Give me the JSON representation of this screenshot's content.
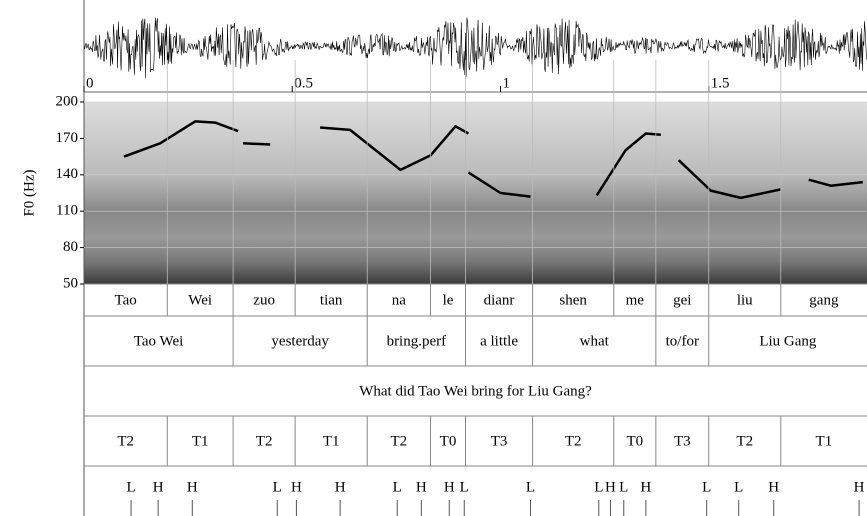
{
  "chart_data": {
    "type": "line",
    "ylabel": "F0 (Hz)",
    "xlim": [
      0,
      1.88
    ],
    "xticks": [
      0,
      0.5,
      1,
      1.5
    ],
    "ylim": [
      50,
      200
    ],
    "yticks": [
      50,
      80,
      110,
      140,
      170,
      200
    ],
    "grid": true,
    "series": [
      {
        "color": "#000000",
        "x": [
          0.096,
          0.183,
          0.267,
          0.315,
          0.37,
          null,
          0.382,
          0.447,
          null,
          0.567,
          0.639,
          0.76,
          0.832,
          0.892,
          0.923,
          null,
          0.923,
          1.0,
          1.072,
          null,
          1.231,
          1.3,
          1.349,
          1.385,
          null,
          1.428,
          1.505,
          1.577,
          1.673,
          null,
          1.74,
          1.793,
          1.87
        ],
        "values": [
          155,
          166,
          184,
          183,
          176,
          null,
          166,
          165,
          null,
          179,
          177,
          144,
          156,
          180,
          174,
          null,
          142,
          125,
          122,
          null,
          123,
          160,
          174,
          173,
          null,
          152,
          127,
          121,
          128,
          null,
          136,
          131,
          134
        ]
      }
    ]
  },
  "tiers": [
    {
      "intervals": [
        {
          "text": "Tao",
          "start": 0,
          "end": 0.2
        },
        {
          "text": "Wei",
          "start": 0.2,
          "end": 0.358
        },
        {
          "text": "zuo",
          "start": 0.358,
          "end": 0.507
        },
        {
          "text": "tian",
          "start": 0.507,
          "end": 0.68
        },
        {
          "text": "na",
          "start": 0.68,
          "end": 0.832
        },
        {
          "text": "le",
          "start": 0.832,
          "end": 0.916
        },
        {
          "text": "dianr",
          "start": 0.916,
          "end": 1.077
        },
        {
          "text": "shen",
          "start": 1.077,
          "end": 1.272
        },
        {
          "text": "me",
          "start": 1.272,
          "end": 1.373
        },
        {
          "text": "gei",
          "start": 1.373,
          "end": 1.5
        },
        {
          "text": "liu",
          "start": 1.5,
          "end": 1.673
        },
        {
          "text": "gang",
          "start": 1.673,
          "end": 1.88
        }
      ]
    },
    {
      "intervals": [
        {
          "text": "Tao Wei",
          "start": 0,
          "end": 0.358
        },
        {
          "text": "yesterday",
          "start": 0.358,
          "end": 0.68
        },
        {
          "text": "bring.perf",
          "start": 0.68,
          "end": 0.916
        },
        {
          "text": "a little",
          "start": 0.916,
          "end": 1.077
        },
        {
          "text": "what",
          "start": 1.077,
          "end": 1.373
        },
        {
          "text": "to/for",
          "start": 1.373,
          "end": 1.5
        },
        {
          "text": "Liu Gang",
          "start": 1.5,
          "end": 1.88
        }
      ]
    },
    {
      "intervals": [
        {
          "text": "What did Tao Wei bring for Liu Gang?",
          "start": 0,
          "end": 1.88
        }
      ]
    },
    {
      "intervals": [
        {
          "text": "T2",
          "start": 0,
          "end": 0.2
        },
        {
          "text": "T1",
          "start": 0.2,
          "end": 0.358
        },
        {
          "text": "T2",
          "start": 0.358,
          "end": 0.507
        },
        {
          "text": "T1",
          "start": 0.507,
          "end": 0.68
        },
        {
          "text": "T2",
          "start": 0.68,
          "end": 0.832
        },
        {
          "text": "T0",
          "start": 0.832,
          "end": 0.916
        },
        {
          "text": "T3",
          "start": 0.916,
          "end": 1.077
        },
        {
          "text": "T2",
          "start": 1.077,
          "end": 1.272
        },
        {
          "text": "T0",
          "start": 1.272,
          "end": 1.373
        },
        {
          "text": "T3",
          "start": 1.373,
          "end": 1.5
        },
        {
          "text": "T2",
          "start": 1.5,
          "end": 1.673
        },
        {
          "text": "T1",
          "start": 1.673,
          "end": 1.88
        }
      ]
    },
    {
      "points": [
        {
          "text": "L",
          "time": 0.113
        },
        {
          "text": "H",
          "time": 0.178
        },
        {
          "text": "H",
          "time": 0.26
        },
        {
          "text": "L",
          "time": 0.464
        },
        {
          "text": "H",
          "time": 0.51
        },
        {
          "text": "H",
          "time": 0.615
        },
        {
          "text": "L",
          "time": 0.752
        },
        {
          "text": "H",
          "time": 0.81
        },
        {
          "text": "H",
          "time": 0.877
        },
        {
          "text": "L",
          "time": 0.913
        },
        {
          "text": "L",
          "time": 1.072
        },
        {
          "text": "L",
          "time": 1.236
        },
        {
          "text": "H",
          "time": 1.264
        },
        {
          "text": "L",
          "time": 1.296
        },
        {
          "text": "H",
          "time": 1.349
        },
        {
          "text": "L",
          "time": 1.495
        },
        {
          "text": "L",
          "time": 1.572
        },
        {
          "text": "H",
          "time": 1.656
        },
        {
          "text": "H",
          "time": 1.861
        }
      ]
    }
  ]
}
